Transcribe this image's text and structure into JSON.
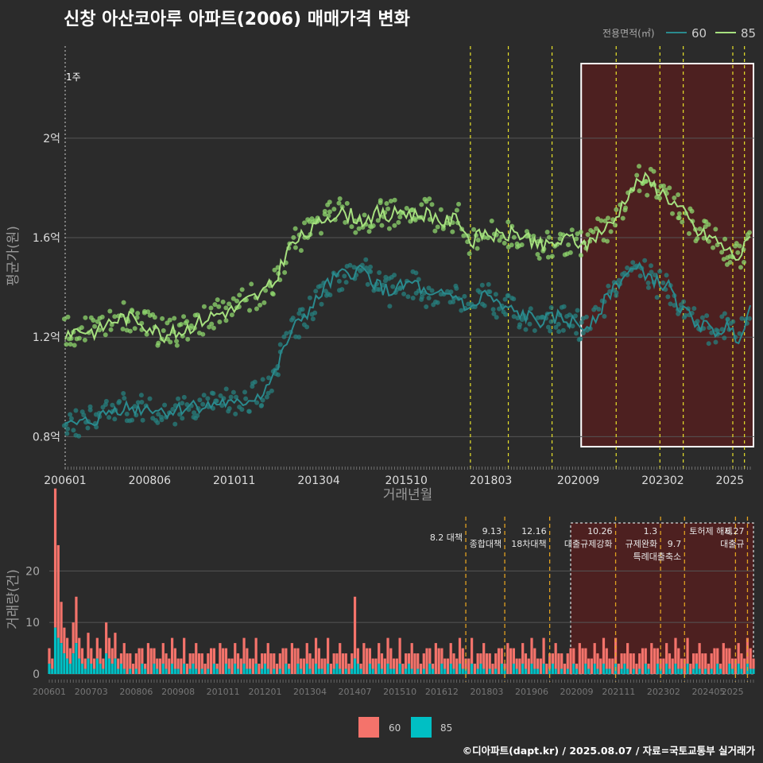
{
  "title": "신창 아산코아루 아파트(2006) 매매가격 변화",
  "footer": "©디아파트(dapt.kr) / 2025.08.07 / 자료=국토교통부 실거래가",
  "colors": {
    "bg": "#2b2b2b",
    "grid": "#555555",
    "s60": "#2a8a8e",
    "s60_pts": "#27807f",
    "s85": "#a6e07f",
    "s85_pts": "#8fd76e",
    "bar60": "#f4736b",
    "bar85": "#00bfc4",
    "event": "#e8e22a",
    "event_bar": "#e0a020",
    "shade": "#5a1e1e",
    "box": "#ffffff"
  },
  "chart_data": [
    {
      "type": "line",
      "xlabel": "거래년월",
      "ylabel": "평균가(원)",
      "x_range": [
        "2006-01",
        "2025-08"
      ],
      "x_ticks": [
        "200601",
        "200806",
        "201011",
        "201304",
        "201510",
        "201803",
        "202009",
        "202302",
        "2025"
      ],
      "y_range": [
        0.75,
        2.3
      ],
      "y_ticks": [
        {
          "v": 0.8,
          "label": "0.8억"
        },
        {
          "v": 1.2,
          "label": "1.2억"
        },
        {
          "v": 1.6,
          "label": "1.6억"
        },
        {
          "v": 2.0,
          "label": "2억"
        }
      ],
      "legend": {
        "title": "전용면적(㎡)",
        "position": "top-right",
        "items": [
          "60",
          "85"
        ]
      },
      "annotation_start": "1주",
      "events": [
        "2017-08",
        "2018-09",
        "2019-12",
        "2021-10",
        "2023-01",
        "2023-09",
        "2025-02",
        "2025-06"
      ],
      "highlight": {
        "from": "2020-10",
        "to": "2025-08"
      },
      "series": [
        {
          "name": "60",
          "points": [
            [
              "2006-01",
              0.84
            ],
            [
              "2006-06",
              0.85
            ],
            [
              "2006-12",
              0.87
            ],
            [
              "2007-04",
              0.9
            ],
            [
              "2007-09",
              0.92
            ],
            [
              "2008-02",
              0.91
            ],
            [
              "2008-06",
              0.92
            ],
            [
              "2008-11",
              0.9
            ],
            [
              "2009-04",
              0.91
            ],
            [
              "2009-09",
              0.93
            ],
            [
              "2010-02",
              0.92
            ],
            [
              "2010-07",
              0.94
            ],
            [
              "2010-11",
              0.92
            ],
            [
              "2011-04",
              0.95
            ],
            [
              "2011-08",
              0.97
            ],
            [
              "2012-01",
              1.05
            ],
            [
              "2012-05",
              1.18
            ],
            [
              "2012-10",
              1.28
            ],
            [
              "2013-02",
              1.32
            ],
            [
              "2013-06",
              1.4
            ],
            [
              "2013-10",
              1.44
            ],
            [
              "2014-03",
              1.46
            ],
            [
              "2014-07",
              1.47
            ],
            [
              "2014-12",
              1.41
            ],
            [
              "2015-04",
              1.38
            ],
            [
              "2015-08",
              1.4
            ],
            [
              "2016-01",
              1.42
            ],
            [
              "2016-06",
              1.35
            ],
            [
              "2016-11",
              1.37
            ],
            [
              "2017-04",
              1.36
            ],
            [
              "2017-08",
              1.3
            ],
            [
              "2018-01",
              1.38
            ],
            [
              "2018-06",
              1.32
            ],
            [
              "2018-11",
              1.3
            ],
            [
              "2019-04",
              1.28
            ],
            [
              "2019-09",
              1.26
            ],
            [
              "2020-02",
              1.28
            ],
            [
              "2020-07",
              1.26
            ],
            [
              "2020-11",
              1.24
            ],
            [
              "2021-04",
              1.3
            ],
            [
              "2021-09",
              1.4
            ],
            [
              "2022-02",
              1.46
            ],
            [
              "2022-07",
              1.47
            ],
            [
              "2022-12",
              1.42
            ],
            [
              "2023-04",
              1.4
            ],
            [
              "2023-09",
              1.3
            ],
            [
              "2024-02",
              1.26
            ],
            [
              "2024-07",
              1.22
            ],
            [
              "2024-12",
              1.24
            ],
            [
              "2025-04",
              1.2
            ],
            [
              "2025-08",
              1.32
            ]
          ]
        },
        {
          "name": "85",
          "points": [
            [
              "2006-01",
              1.22
            ],
            [
              "2006-06",
              1.23
            ],
            [
              "2006-12",
              1.22
            ],
            [
              "2007-04",
              1.26
            ],
            [
              "2007-09",
              1.28
            ],
            [
              "2008-02",
              1.27
            ],
            [
              "2008-06",
              1.24
            ],
            [
              "2008-11",
              1.21
            ],
            [
              "2009-04",
              1.22
            ],
            [
              "2009-09",
              1.25
            ],
            [
              "2010-02",
              1.28
            ],
            [
              "2010-07",
              1.3
            ],
            [
              "2010-11",
              1.31
            ],
            [
              "2011-04",
              1.35
            ],
            [
              "2011-08",
              1.37
            ],
            [
              "2012-01",
              1.42
            ],
            [
              "2012-05",
              1.55
            ],
            [
              "2012-10",
              1.6
            ],
            [
              "2013-02",
              1.63
            ],
            [
              "2013-06",
              1.68
            ],
            [
              "2013-10",
              1.7
            ],
            [
              "2014-03",
              1.69
            ],
            [
              "2014-07",
              1.67
            ],
            [
              "2014-12",
              1.7
            ],
            [
              "2015-04",
              1.68
            ],
            [
              "2015-08",
              1.71
            ],
            [
              "2016-01",
              1.69
            ],
            [
              "2016-06",
              1.7
            ],
            [
              "2016-11",
              1.66
            ],
            [
              "2017-04",
              1.68
            ],
            [
              "2017-08",
              1.58
            ],
            [
              "2018-01",
              1.62
            ],
            [
              "2018-06",
              1.6
            ],
            [
              "2018-11",
              1.62
            ],
            [
              "2019-04",
              1.6
            ],
            [
              "2019-09",
              1.56
            ],
            [
              "2020-02",
              1.58
            ],
            [
              "2020-07",
              1.6
            ],
            [
              "2020-11",
              1.56
            ],
            [
              "2021-04",
              1.62
            ],
            [
              "2021-09",
              1.66
            ],
            [
              "2022-02",
              1.78
            ],
            [
              "2022-07",
              1.84
            ],
            [
              "2022-12",
              1.8
            ],
            [
              "2023-04",
              1.76
            ],
            [
              "2023-09",
              1.7
            ],
            [
              "2024-02",
              1.62
            ],
            [
              "2024-07",
              1.6
            ],
            [
              "2024-12",
              1.55
            ],
            [
              "2025-04",
              1.52
            ],
            [
              "2025-08",
              1.6
            ]
          ]
        }
      ]
    },
    {
      "type": "bar",
      "ylabel": "거래량(건)",
      "y_range": [
        0,
        29
      ],
      "y_ticks": [
        0,
        10,
        20
      ],
      "x_ticks": [
        "200601",
        "200703",
        "200806",
        "200908",
        "201011",
        "201201",
        "201304",
        "201407",
        "201510",
        "201612",
        "201803",
        "201906",
        "202009",
        "202111",
        "202302",
        "202405",
        "2025"
      ],
      "legend": {
        "position": "bottom",
        "items": [
          "60",
          "85"
        ]
      },
      "policy_events": [
        {
          "date": "2017-08",
          "labels": [
            "8.2 대책"
          ]
        },
        {
          "date": "2018-09",
          "labels": [
            "9.13",
            "종합대책"
          ]
        },
        {
          "date": "2019-12",
          "labels": [
            "12.16",
            "18차대책"
          ]
        },
        {
          "date": "2021-10",
          "labels": [
            "10.26",
            "대출규제강화"
          ]
        },
        {
          "date": "2023-01",
          "labels": [
            "1.3",
            "규제완화"
          ]
        },
        {
          "date": "2023-09",
          "labels": [
            "9.7",
            "특례대출축소"
          ]
        },
        {
          "date": "2025-02",
          "labels": [
            "토허제 해제"
          ]
        },
        {
          "date": "2025-06",
          "labels": [
            "6.27",
            "대출규"
          ]
        }
      ],
      "highlight": {
        "from": "2020-07",
        "to": "2025-08"
      },
      "series": [
        {
          "name": "60",
          "values_note": "monthly counts",
          "pattern": [
            3,
            2,
            27,
            18,
            8,
            5,
            4,
            3,
            6,
            9,
            4,
            3,
            2,
            5,
            3,
            2,
            4,
            3,
            2,
            6,
            4,
            3,
            5,
            2
          ]
        },
        {
          "name": "85",
          "pattern": [
            2,
            1,
            9,
            7,
            6,
            4,
            3,
            2,
            4,
            6,
            3,
            2,
            1,
            3,
            2,
            1,
            3,
            2,
            1,
            4,
            3,
            2,
            3,
            1
          ]
        }
      ]
    }
  ]
}
